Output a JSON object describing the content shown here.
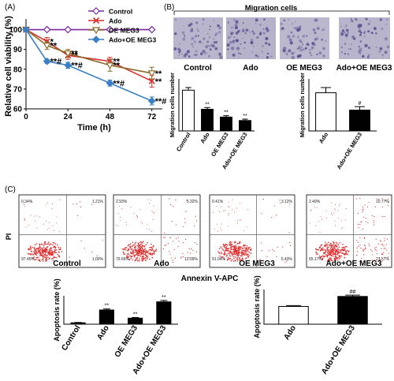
{
  "panels": {
    "A": {
      "label": "(A)"
    },
    "B": {
      "label": "(B)",
      "image_title": "Migration cells",
      "image_labels": [
        "Control",
        "Ado",
        "OE MEG3",
        "Ado+OE MEG3"
      ]
    },
    "C": {
      "label": "(C)",
      "flow_xlabel": "Annexin V-APC",
      "flow_ylabel": "PI",
      "flow_titles": [
        "Control",
        "Ado",
        "OE MEG3",
        "Ado+OE MEG3"
      ],
      "quadrants": [
        {
          "ul": "0.34%",
          "ur": "1.21%",
          "ll": "97.45%",
          "lr": "1.00%"
        },
        {
          "ul": "2.93%",
          "ur": "5.32%",
          "ll": "79.66%",
          "lr": "12.09%"
        },
        {
          "ul": "0.41%",
          "ur": "3.12%",
          "ll": "91.04%",
          "lr": "5.43%"
        },
        {
          "ul": "2.49%",
          "ur": "10.77%",
          "ll": "65.17%",
          "lr": "21.57%"
        }
      ]
    }
  },
  "colors": {
    "control": "#7a2a9e",
    "ado": "#d93030",
    "oe": "#8a6a2a",
    "combo": "#3a7fc4",
    "dots": "#e03030",
    "cells": "#9c97b8"
  },
  "chart_data": [
    {
      "id": "viability",
      "type": "line",
      "xlabel": "Time (h)",
      "ylabel": "Relative cell viability (%)",
      "xticks": [
        0,
        24,
        48,
        72
      ],
      "yticks": [
        60,
        70,
        80,
        90,
        100
      ],
      "xlim": [
        0,
        78
      ],
      "ylim": [
        60,
        103
      ],
      "legend": "top-right",
      "series": [
        {
          "name": "Control",
          "x": [
            0,
            12,
            24,
            48,
            72
          ],
          "y": [
            100,
            100,
            100,
            100,
            100
          ],
          "err": [
            0,
            0,
            0,
            0,
            0
          ],
          "marker": "diamond",
          "color": "#7a2a9e",
          "ann": [
            "",
            "",
            "",
            "",
            ""
          ]
        },
        {
          "name": "Ado",
          "x": [
            0,
            12,
            24,
            48,
            72
          ],
          "y": [
            100,
            94,
            87,
            84,
            74
          ],
          "err": [
            0.5,
            2,
            2,
            2,
            3
          ],
          "marker": "x",
          "color": "#d93030",
          "ann": [
            "",
            "*",
            "**",
            "**",
            "**"
          ]
        },
        {
          "name": "OE MEG3",
          "x": [
            0,
            12,
            24,
            48,
            72
          ],
          "y": [
            100,
            92,
            88,
            82,
            78
          ],
          "err": [
            0.5,
            2,
            2,
            3,
            3
          ],
          "marker": "triangle",
          "color": "#8a6a2a",
          "ann": [
            "",
            "**",
            "**",
            "**",
            "**"
          ]
        },
        {
          "name": "Ado+OE MEG3",
          "x": [
            0,
            12,
            24,
            48,
            72
          ],
          "y": [
            100,
            84,
            82,
            73,
            64
          ],
          "err": [
            0.5,
            1,
            1.5,
            1.5,
            2
          ],
          "marker": "diamond",
          "color": "#3a7fc4",
          "ann": [
            "",
            "**#",
            "**#",
            "**#",
            "**#"
          ]
        }
      ]
    },
    {
      "id": "migration_a",
      "type": "bar",
      "ylabel": "Migration cells number",
      "categories": [
        "Control",
        "Ado",
        "OE MEG3",
        "Ado+OE MEG3"
      ],
      "values": [
        23.5,
        12.5,
        8,
        6
      ],
      "err": [
        1.5,
        1,
        0.8,
        0.8
      ],
      "fills": [
        "white",
        "black",
        "black",
        "black"
      ],
      "ann": [
        "",
        "**",
        "**",
        "**"
      ],
      "ylim": [
        0,
        30
      ]
    },
    {
      "id": "migration_b",
      "type": "bar",
      "ylabel": "Migration cells number",
      "categories": [
        "Ado",
        "Ado+OE MEG3"
      ],
      "values": [
        11,
        6
      ],
      "err": [
        1.5,
        1
      ],
      "fills": [
        "white",
        "black"
      ],
      "ann": [
        "",
        "#"
      ],
      "ylim": [
        0,
        15
      ]
    },
    {
      "id": "apoptosis_a",
      "type": "bar",
      "ylabel": "Apoptosis rate (%)",
      "categories": [
        "Control",
        "Ado",
        "OE MEG3",
        "Ado+OE MEG3"
      ],
      "values": [
        2,
        20,
        8.5,
        31.5
      ],
      "err": [
        0.5,
        1.5,
        1,
        2
      ],
      "fills": [
        "black",
        "black",
        "black",
        "black"
      ],
      "ann": [
        "",
        "**",
        "**",
        "**"
      ],
      "ylim": [
        0,
        40
      ]
    },
    {
      "id": "apoptosis_b",
      "type": "bar",
      "ylabel": "Apoptosis rate (%)",
      "categories": [
        "Ado",
        "Ado+OE MEG3"
      ],
      "values": [
        20.5,
        32
      ],
      "err": [
        1,
        1.5
      ],
      "fills": [
        "white",
        "black"
      ],
      "ann": [
        "",
        "##"
      ],
      "ylim": [
        0,
        40
      ]
    }
  ]
}
